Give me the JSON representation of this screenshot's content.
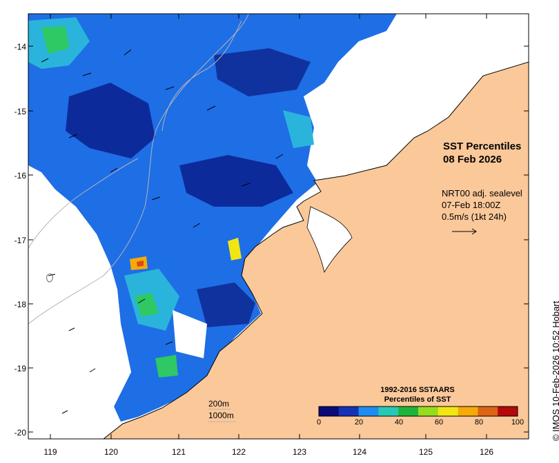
{
  "map": {
    "title_line1": "SST Percentiles",
    "title_line2": "08 Feb 2026",
    "y_ticks": [
      "-14",
      "-15",
      "-16",
      "-17",
      "-18",
      "-19",
      "-20"
    ],
    "x_ticks": [
      "119",
      "120",
      "121",
      "122",
      "123",
      "124",
      "125",
      "126"
    ],
    "vector_info": {
      "line1": "NRT00 adj. sealevel",
      "line2": "07-Feb 18:00Z",
      "line3": "0.5m/s (1kt 24h)"
    },
    "credit": "© IMOS 10-Feb-2026 10:52 Hobart",
    "depth_labels": [
      "200m",
      "1000m"
    ]
  },
  "colorbar": {
    "title_line1": "1992-2016 SSTAARS",
    "title_line2": "Percentiles of SST",
    "tick_labels": [
      "0",
      "20",
      "40",
      "60",
      "80",
      "100"
    ],
    "colors": [
      "#0a0a78",
      "#1432b4",
      "#1e8cf0",
      "#28c8b4",
      "#1eb43c",
      "#96dc1e",
      "#f0e614",
      "#f5aa0a",
      "#dc6414",
      "#b40a0a"
    ]
  },
  "colors": {
    "land": "#fbc89a",
    "no_data": "#ffffff"
  }
}
